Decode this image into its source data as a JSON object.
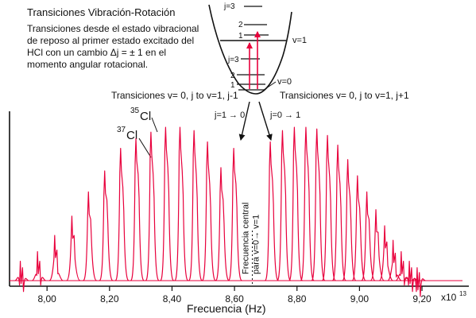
{
  "title": "Transiciones Vibración-Rotación",
  "description": {
    "line1": "Transiciones desde el estado vibracional",
    "line2": "de reposo al primer estado excitado del",
    "line3": "HCl con un cambio",
    "line3_eq": "Δj = ± 1",
    "line3_end": "en el",
    "line4": "momento angular rotacional."
  },
  "energy_diagram": {
    "upper_levels": [
      "j=3",
      "2",
      "1"
    ],
    "upper_state": "v=1",
    "lower_levels": [
      "j=3",
      "2",
      "1"
    ],
    "lower_state": "v=0"
  },
  "branch_labels": {
    "left": "Transiciones v= 0, j to v=1, j-1",
    "right": "Transiciones v= 0, j to v=1, j+1",
    "left_arrow": "j=1 → 0",
    "right_arrow": "j=0 → 1"
  },
  "isotopes": {
    "cl35_mass": "35",
    "cl35_sym": "Cl",
    "cl37_mass": "37",
    "cl37_sym": "Cl"
  },
  "center_label": {
    "line1": "Frecuencia central",
    "line2": "para v=0→ v=1"
  },
  "colors": {
    "spectrum": "#e8003c",
    "axis": "#111111",
    "arrow": "#e8003c"
  },
  "chart_data": {
    "type": "line",
    "xlabel": "Frecuencia (Hz)",
    "x_exponent": "x10",
    "x_exponent_power": "13",
    "x_ticks": [
      "8,00",
      "8,20",
      "8,40",
      "8,60",
      "8,80",
      "9,00",
      "9,20"
    ],
    "x_tick_values": [
      8.0,
      8.2,
      8.4,
      8.6,
      8.8,
      9.0,
      9.2
    ],
    "xlim": [
      7.88,
      9.35
    ],
    "ylim": [
      0,
      1
    ],
    "center_frequency": 8.657,
    "peaks": [
      {
        "x": 7.915,
        "h35": 0.12,
        "h37": 0.08
      },
      {
        "x": 7.97,
        "h35": 0.18,
        "h37": 0.12
      },
      {
        "x": 8.025,
        "h35": 0.28,
        "h37": 0.19
      },
      {
        "x": 8.08,
        "h35": 0.4,
        "h37": 0.28
      },
      {
        "x": 8.133,
        "h35": 0.55,
        "h37": 0.38
      },
      {
        "x": 8.185,
        "h35": 0.68,
        "h37": 0.5
      },
      {
        "x": 8.236,
        "h35": 0.82,
        "h37": 0.58
      },
      {
        "x": 8.285,
        "h35": 0.88,
        "h37": 0.66
      },
      {
        "x": 8.333,
        "h35": 0.92,
        "h37": 0.66
      },
      {
        "x": 8.38,
        "h35": 0.95,
        "h37": 0.7
      },
      {
        "x": 8.426,
        "h35": 0.95,
        "h37": 0.68
      },
      {
        "x": 8.471,
        "h35": 0.93,
        "h37": 0.66
      },
      {
        "x": 8.514,
        "h35": 0.86,
        "h37": 0.6
      },
      {
        "x": 8.557,
        "h35": 0.7,
        "h37": 0.5
      },
      {
        "x": 8.598,
        "h35": 0.82,
        "h37": 0.6
      },
      {
        "x": 8.715,
        "h35": 0.86,
        "h37": 0.62
      },
      {
        "x": 8.754,
        "h35": 0.93,
        "h37": 0.68
      },
      {
        "x": 8.792,
        "h35": 0.95,
        "h37": 0.7
      },
      {
        "x": 8.829,
        "h35": 0.95,
        "h37": 0.7
      },
      {
        "x": 8.864,
        "h35": 0.94,
        "h37": 0.68
      },
      {
        "x": 8.898,
        "h35": 0.9,
        "h37": 0.64
      },
      {
        "x": 8.931,
        "h35": 0.84,
        "h37": 0.6
      },
      {
        "x": 8.963,
        "h35": 0.75,
        "h37": 0.52
      },
      {
        "x": 8.994,
        "h35": 0.65,
        "h37": 0.45
      },
      {
        "x": 9.024,
        "h35": 0.55,
        "h37": 0.38
      },
      {
        "x": 9.053,
        "h35": 0.44,
        "h37": 0.3
      },
      {
        "x": 9.081,
        "h35": 0.34,
        "h37": 0.24
      },
      {
        "x": 9.108,
        "h35": 0.25,
        "h37": 0.17
      },
      {
        "x": 9.134,
        "h35": 0.18,
        "h37": 0.12
      },
      {
        "x": 9.16,
        "h35": 0.12,
        "h37": 0.08
      },
      {
        "x": 9.185,
        "h35": 0.08,
        "h37": 0.05
      }
    ]
  }
}
